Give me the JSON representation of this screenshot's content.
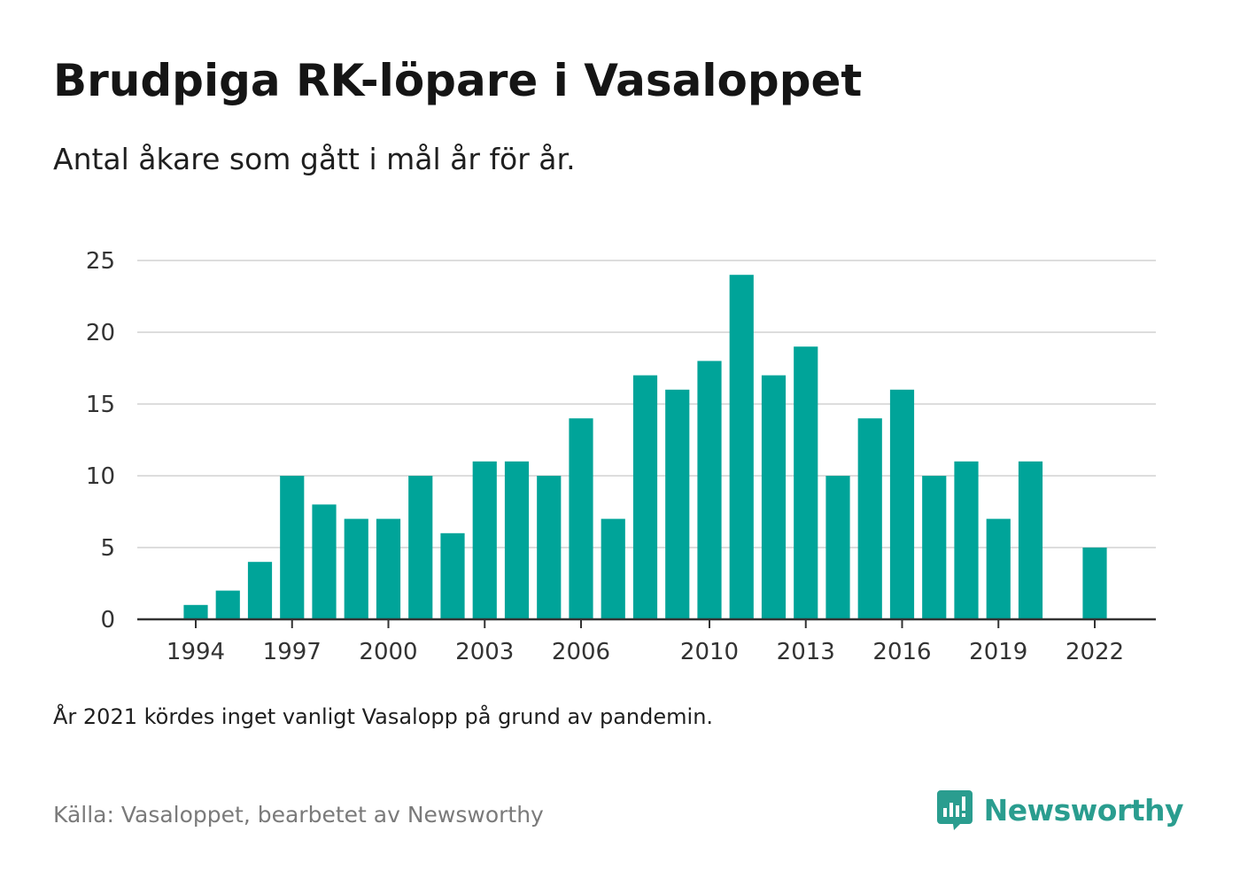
{
  "title": "Brudpiga RK-löpare i Vasaloppet",
  "subtitle": "Antal åkare som gått i mål år för år.",
  "note": "År 2021 kördes inget vanligt Vasalopp på grund av pandemin.",
  "source": "Källa: Vasaloppet, bearbetet av Newsworthy",
  "brand": {
    "name": "Newsworthy",
    "color": "#2a9d8f",
    "icon": "newsworthy-logo-icon"
  },
  "colors": {
    "bar": "#00a499",
    "grid": "#dddddd",
    "axis": "#333333"
  },
  "chart_data": {
    "type": "bar",
    "x": [
      1994,
      1995,
      1996,
      1997,
      1998,
      1999,
      2000,
      2001,
      2002,
      2003,
      2004,
      2005,
      2006,
      2007,
      2008,
      2009,
      2010,
      2011,
      2012,
      2013,
      2014,
      2015,
      2016,
      2017,
      2018,
      2019,
      2020,
      2021,
      2022
    ],
    "values": [
      1,
      2,
      4,
      10,
      8,
      7,
      7,
      10,
      6,
      11,
      11,
      10,
      14,
      7,
      17,
      16,
      18,
      24,
      17,
      19,
      10,
      14,
      16,
      10,
      11,
      7,
      11,
      null,
      5
    ],
    "x_ticks": [
      1994,
      1997,
      2000,
      2003,
      2006,
      2010,
      2013,
      2016,
      2019,
      2022
    ],
    "y_ticks": [
      0,
      5,
      10,
      15,
      20,
      25
    ],
    "ylim": [
      0,
      25
    ],
    "grid": true,
    "legend": "none"
  }
}
